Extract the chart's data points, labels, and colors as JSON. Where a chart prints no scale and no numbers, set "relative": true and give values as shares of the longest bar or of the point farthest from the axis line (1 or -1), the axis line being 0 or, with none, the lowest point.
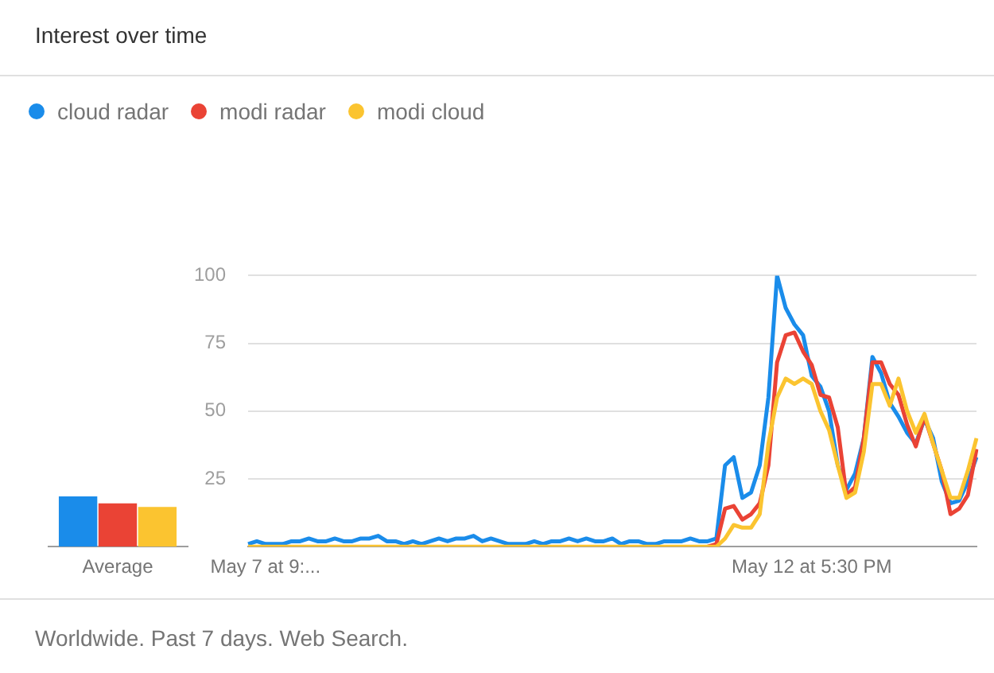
{
  "chart_data": [
    {
      "type": "line",
      "title": "Interest over time",
      "legend": "top left",
      "grid": "y",
      "marker": "none",
      "line_style": "solid",
      "categories": [
        null,
        null,
        "May 7 at 9:...",
        null,
        null,
        null,
        null,
        null,
        null,
        null,
        null,
        null,
        null,
        null,
        null,
        null,
        null,
        null,
        null,
        null,
        null,
        null,
        null,
        null,
        null,
        null,
        null,
        null,
        null,
        null,
        null,
        null,
        null,
        null,
        null,
        null,
        null,
        null,
        null,
        null,
        null,
        null,
        null,
        null,
        null,
        null,
        null,
        null,
        null,
        null,
        null,
        null,
        null,
        null,
        null,
        null,
        null,
        null,
        null,
        null,
        null,
        null,
        null,
        null,
        null,
        "May 12 at 5:30 PM",
        null,
        null,
        null,
        null,
        null,
        null,
        null,
        null,
        null,
        null,
        null,
        null,
        null,
        null,
        null,
        null,
        null,
        null,
        null
      ],
      "ylim": [
        0,
        100
      ],
      "yticks": [
        {
          "value": 0,
          "label": null
        },
        25,
        50,
        75,
        100
      ],
      "series": [
        {
          "name": "cloud radar",
          "color": "#1a8cea",
          "values": [
            1,
            2,
            1,
            1,
            1,
            2,
            2,
            3,
            2,
            2,
            3,
            2,
            2,
            3,
            3,
            4,
            2,
            2,
            1,
            2,
            1,
            2,
            3,
            2,
            3,
            3,
            4,
            2,
            3,
            2,
            1,
            1,
            1,
            2,
            1,
            2,
            2,
            3,
            2,
            3,
            2,
            2,
            3,
            1,
            2,
            2,
            1,
            1,
            2,
            2,
            2,
            3,
            2,
            2,
            3,
            30,
            33,
            18,
            20,
            30,
            55,
            100,
            88,
            82,
            78,
            63,
            59,
            50,
            30,
            21,
            27,
            40,
            70,
            64,
            53,
            48,
            42,
            38,
            47,
            40,
            24,
            16,
            17,
            24,
            33
          ]
        },
        {
          "name": "modi radar",
          "color": "#ea4335",
          "values": [
            null,
            null,
            null,
            null,
            null,
            null,
            null,
            null,
            null,
            null,
            null,
            null,
            null,
            null,
            null,
            null,
            null,
            null,
            null,
            null,
            null,
            null,
            null,
            null,
            null,
            null,
            null,
            null,
            null,
            null,
            null,
            null,
            null,
            null,
            null,
            null,
            null,
            null,
            null,
            null,
            null,
            null,
            null,
            null,
            null,
            null,
            null,
            null,
            null,
            null,
            null,
            null,
            null,
            0,
            1,
            14,
            15,
            10,
            12,
            16,
            30,
            68,
            78,
            79,
            72,
            67,
            56,
            55,
            44,
            19,
            22,
            40,
            68,
            68,
            60,
            56,
            45,
            37,
            48,
            38,
            28,
            12,
            14,
            19,
            36
          ]
        },
        {
          "name": "modi cloud",
          "color": "#fbc430",
          "values": [
            0,
            0,
            0,
            0,
            0,
            0,
            0,
            0,
            0,
            0,
            0,
            0,
            0,
            0,
            0,
            0,
            0,
            0,
            0,
            0,
            0,
            0,
            0,
            0,
            0,
            0,
            0,
            0,
            0,
            0,
            0,
            0,
            0,
            0,
            0,
            0,
            0,
            0,
            0,
            0,
            0,
            0,
            0,
            0,
            0,
            0,
            0,
            0,
            0,
            0,
            0,
            0,
            0,
            0,
            0,
            3,
            8,
            7,
            7,
            12,
            38,
            55,
            62,
            60,
            62,
            60,
            50,
            43,
            30,
            18,
            20,
            35,
            60,
            60,
            52,
            62,
            50,
            42,
            49,
            38,
            28,
            18,
            18,
            28,
            40
          ]
        }
      ],
      "annotations": [
        "Worldwide. Past 7 days. Web Search."
      ]
    },
    {
      "type": "bar",
      "relative": true,
      "categories": [
        "Average"
      ],
      "series": [
        {
          "color": "#1a8cea",
          "values": [
            1
          ]
        },
        {
          "color": "#ea4335",
          "values": [
            0.86
          ]
        },
        {
          "color": "#fbc430",
          "values": [
            0.79
          ]
        }
      ]
    }
  ]
}
